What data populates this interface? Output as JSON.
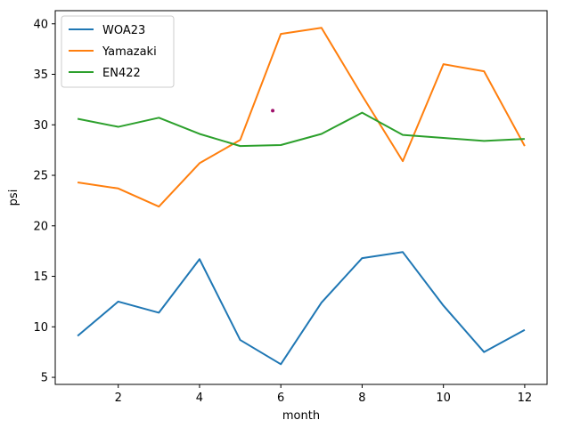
{
  "chart_data": {
    "type": "line",
    "title": "",
    "xlabel": "month",
    "ylabel": "psi",
    "x": [
      1,
      2,
      3,
      4,
      5,
      6,
      7,
      8,
      9,
      10,
      11,
      12
    ],
    "xlim": [
      0.45,
      12.55
    ],
    "ylim": [
      4.3,
      41.3
    ],
    "xticks": [
      2,
      4,
      6,
      8,
      10,
      12
    ],
    "yticks": [
      5,
      10,
      15,
      20,
      25,
      30,
      35,
      40
    ],
    "grid": false,
    "legend": "top-left",
    "series": [
      {
        "name": "WOA23",
        "color": "#1f77b4",
        "values": [
          9.1,
          12.5,
          11.4,
          16.7,
          8.7,
          6.3,
          12.4,
          16.8,
          17.4,
          12.1,
          7.5,
          9.7
        ]
      },
      {
        "name": "Yamazaki",
        "color": "#ff7f0e",
        "values": [
          24.3,
          23.7,
          21.9,
          26.2,
          28.5,
          39.0,
          39.6,
          32.9,
          26.4,
          36.0,
          35.3,
          27.9
        ]
      },
      {
        "name": "EN422",
        "color": "#2ca02c",
        "values": [
          30.6,
          29.8,
          30.7,
          29.1,
          27.9,
          28.0,
          29.1,
          31.2,
          29.0,
          28.7,
          28.4,
          28.6
        ]
      }
    ],
    "annotations": [
      {
        "type": "point",
        "x": 5.8,
        "y": 31.4,
        "color": "#a0106b"
      }
    ]
  }
}
